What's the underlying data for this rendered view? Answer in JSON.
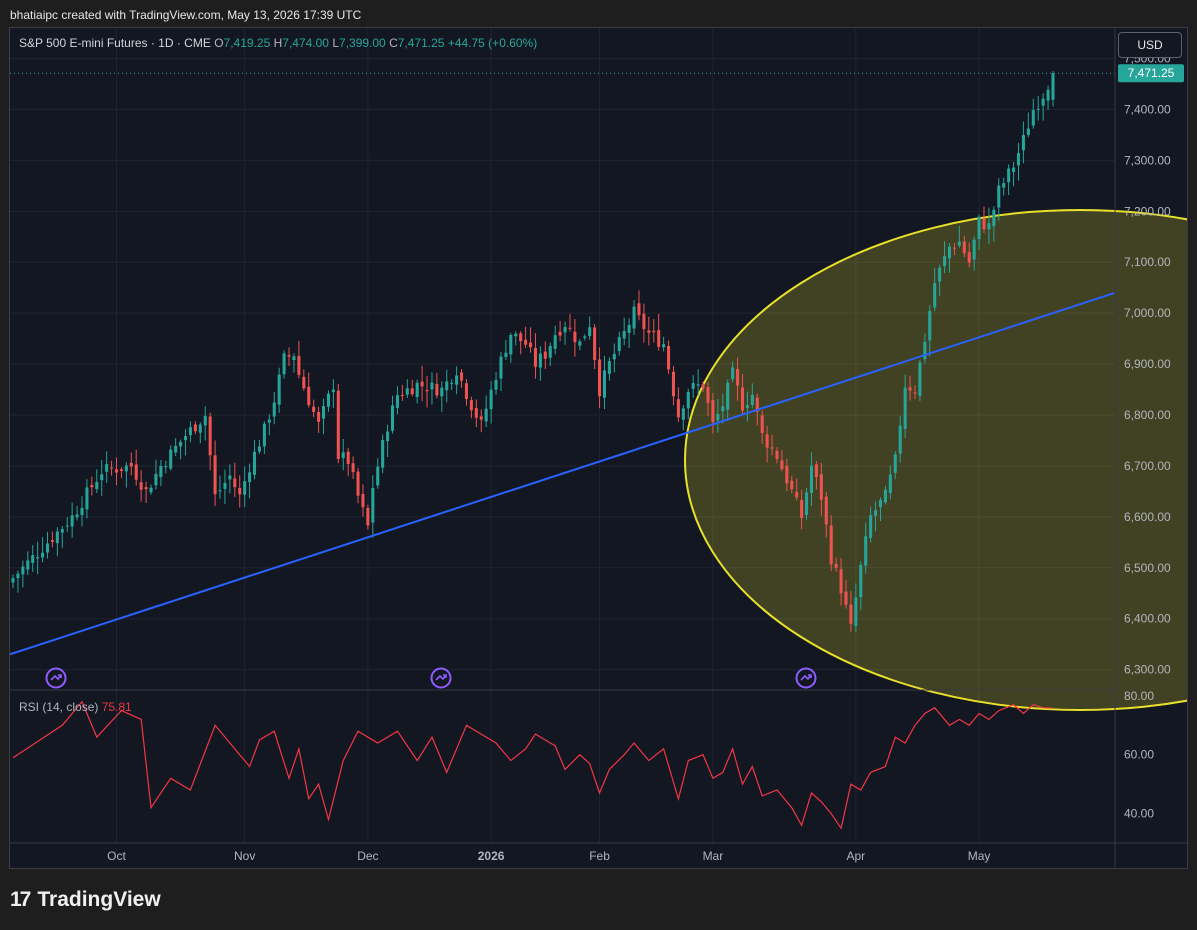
{
  "header": {
    "attribution": "bhatiaipc created with TradingView.com, May 13, 2026 17:39 UTC"
  },
  "symbol_bar": {
    "name": "S&P 500 E-mini Futures · 1D · CME",
    "o_label": "O",
    "o_value": "7,419.25",
    "h_label": "H",
    "h_value": "7,474.00",
    "l_label": "L",
    "l_value": "7,399.00",
    "c_label": "C",
    "c_value": "7,471.25",
    "change": "+44.75 (+0.60%)"
  },
  "currency_button": "USD",
  "rsi_legend": {
    "label": "RSI (14, close)",
    "value": "75.81"
  },
  "brand": {
    "logo": "17",
    "name": "TradingView"
  },
  "colors": {
    "up": "#26a69a",
    "down": "#ef5350",
    "trendline": "#2962ff",
    "ellipse": "#e8e02a",
    "rsi": "#f23645",
    "last_price": "#26a69a"
  },
  "icons": [
    "event-arrow-icon",
    "event-arrow-icon",
    "event-arrow-icon"
  ],
  "chart_data": [
    {
      "type": "candlestick",
      "title": "S&P 500 E-mini Futures · 1D · CME",
      "y_ticks": [
        "7,500.00",
        "7,400.00",
        "7,300.00",
        "7,200.00",
        "7,100.00",
        "7,000.00",
        "6,900.00",
        "6,800.00",
        "6,700.00",
        "6,600.00",
        "6,500.00",
        "6,400.00",
        "6,300.00"
      ],
      "ylim": [
        6260,
        7560
      ],
      "x_ticks": [
        "Oct",
        "Nov",
        "Dec",
        "2026",
        "Feb",
        "Mar",
        "Apr",
        "May"
      ],
      "last_price_label": "7,471.25",
      "last_price": 7471.25,
      "close_path": [
        [
          0,
          6480
        ],
        [
          8,
          6560
        ],
        [
          12,
          6600
        ],
        [
          18,
          6690
        ],
        [
          24,
          6700
        ],
        [
          27,
          6650
        ],
        [
          30,
          6700
        ],
        [
          35,
          6760
        ],
        [
          39,
          6800
        ],
        [
          41,
          6640
        ],
        [
          44,
          6680
        ],
        [
          46,
          6640
        ],
        [
          48,
          6700
        ],
        [
          51,
          6770
        ],
        [
          53,
          6830
        ],
        [
          55,
          6910
        ],
        [
          57,
          6920
        ],
        [
          58,
          6880
        ],
        [
          62,
          6780
        ],
        [
          65,
          6860
        ],
        [
          66,
          6720
        ],
        [
          68,
          6710
        ],
        [
          70,
          6640
        ],
        [
          72,
          6580
        ],
        [
          73,
          6660
        ],
        [
          76,
          6780
        ],
        [
          78,
          6840
        ],
        [
          82,
          6860
        ],
        [
          87,
          6850
        ],
        [
          90,
          6890
        ],
        [
          93,
          6820
        ],
        [
          95,
          6780
        ],
        [
          98,
          6880
        ],
        [
          101,
          6960
        ],
        [
          104,
          6940
        ],
        [
          106,
          6900
        ],
        [
          108,
          6920
        ],
        [
          110,
          6960
        ],
        [
          112,
          6980
        ],
        [
          115,
          6940
        ],
        [
          117,
          6980
        ],
        [
          119,
          6850
        ],
        [
          121,
          6900
        ],
        [
          124,
          6960
        ],
        [
          126,
          7000
        ],
        [
          129,
          6960
        ],
        [
          132,
          6940
        ],
        [
          135,
          6800
        ],
        [
          137,
          6850
        ],
        [
          140,
          6860
        ],
        [
          142,
          6780
        ],
        [
          144,
          6820
        ],
        [
          146,
          6880
        ],
        [
          148,
          6820
        ],
        [
          150,
          6840
        ],
        [
          152,
          6760
        ],
        [
          155,
          6720
        ],
        [
          158,
          6650
        ],
        [
          160,
          6600
        ],
        [
          162,
          6700
        ],
        [
          164,
          6640
        ],
        [
          166,
          6520
        ],
        [
          168,
          6460
        ],
        [
          170,
          6380
        ],
        [
          172,
          6500
        ],
        [
          174,
          6600
        ],
        [
          177,
          6640
        ],
        [
          179,
          6710
        ],
        [
          181,
          6860
        ],
        [
          183,
          6850
        ],
        [
          185,
          6950
        ],
        [
          187,
          7060
        ],
        [
          190,
          7130
        ],
        [
          192,
          7140
        ],
        [
          194,
          7100
        ],
        [
          196,
          7180
        ],
        [
          198,
          7170
        ],
        [
          200,
          7240
        ],
        [
          203,
          7290
        ],
        [
          205,
          7340
        ],
        [
          207,
          7400
        ],
        [
          209,
          7430
        ],
        [
          211,
          7471.25
        ]
      ],
      "trendline": [
        [
          0,
          6330
        ],
        [
          211,
          7040
        ]
      ],
      "annotations": {
        "ellipse": "highlighted region, Mar–May, ~6,230–6,960",
        "event_markers": 3
      }
    },
    {
      "type": "line",
      "title": "RSI (14, close)",
      "last_value": 75.81,
      "y_ticks": [
        "80.00",
        "60.00",
        "40.00"
      ],
      "ylim": [
        30,
        82
      ],
      "series": [
        {
          "values": [
            [
              0,
              59
            ],
            [
              10,
              70
            ],
            [
              14,
              78
            ],
            [
              17,
              66
            ],
            [
              22,
              75
            ],
            [
              26,
              72
            ],
            [
              28,
              42
            ],
            [
              32,
              52
            ],
            [
              36,
              48
            ],
            [
              41,
              70
            ],
            [
              46,
              60
            ],
            [
              48,
              56
            ],
            [
              50,
              65
            ],
            [
              53,
              68
            ],
            [
              56,
              52
            ],
            [
              58,
              62
            ],
            [
              60,
              45
            ],
            [
              62,
              50
            ],
            [
              64,
              38
            ],
            [
              67,
              58
            ],
            [
              70,
              68
            ],
            [
              74,
              64
            ],
            [
              78,
              68
            ],
            [
              82,
              58
            ],
            [
              85,
              66
            ],
            [
              88,
              54
            ],
            [
              92,
              70
            ],
            [
              95,
              67
            ],
            [
              98,
              64
            ],
            [
              101,
              58
            ],
            [
              104,
              62
            ],
            [
              106,
              67
            ],
            [
              108,
              65
            ],
            [
              110,
              63
            ],
            [
              112,
              55
            ],
            [
              115,
              60
            ],
            [
              117,
              57
            ],
            [
              119,
              47
            ],
            [
              121,
              55
            ],
            [
              124,
              60
            ],
            [
              126,
              64
            ],
            [
              129,
              58
            ],
            [
              132,
              62
            ],
            [
              135,
              45
            ],
            [
              137,
              58
            ],
            [
              140,
              60
            ],
            [
              142,
              52
            ],
            [
              144,
              54
            ],
            [
              146,
              62
            ],
            [
              148,
              50
            ],
            [
              150,
              56
            ],
            [
              152,
              46
            ],
            [
              155,
              48
            ],
            [
              158,
              42
            ],
            [
              160,
              36
            ],
            [
              162,
              47
            ],
            [
              164,
              44
            ],
            [
              166,
              40
            ],
            [
              168,
              35
            ],
            [
              170,
              50
            ],
            [
              172,
              48
            ],
            [
              174,
              54
            ],
            [
              177,
              56
            ],
            [
              179,
              66
            ],
            [
              181,
              64
            ],
            [
              183,
              70
            ],
            [
              185,
              74
            ],
            [
              187,
              76
            ],
            [
              190,
              70
            ],
            [
              192,
              72
            ],
            [
              194,
              70
            ],
            [
              196,
              74
            ],
            [
              198,
              72
            ],
            [
              200,
              75
            ],
            [
              203,
              77
            ],
            [
              205,
              74
            ],
            [
              207,
              77
            ],
            [
              209,
              76
            ],
            [
              211,
              75.81
            ]
          ]
        }
      ]
    }
  ]
}
